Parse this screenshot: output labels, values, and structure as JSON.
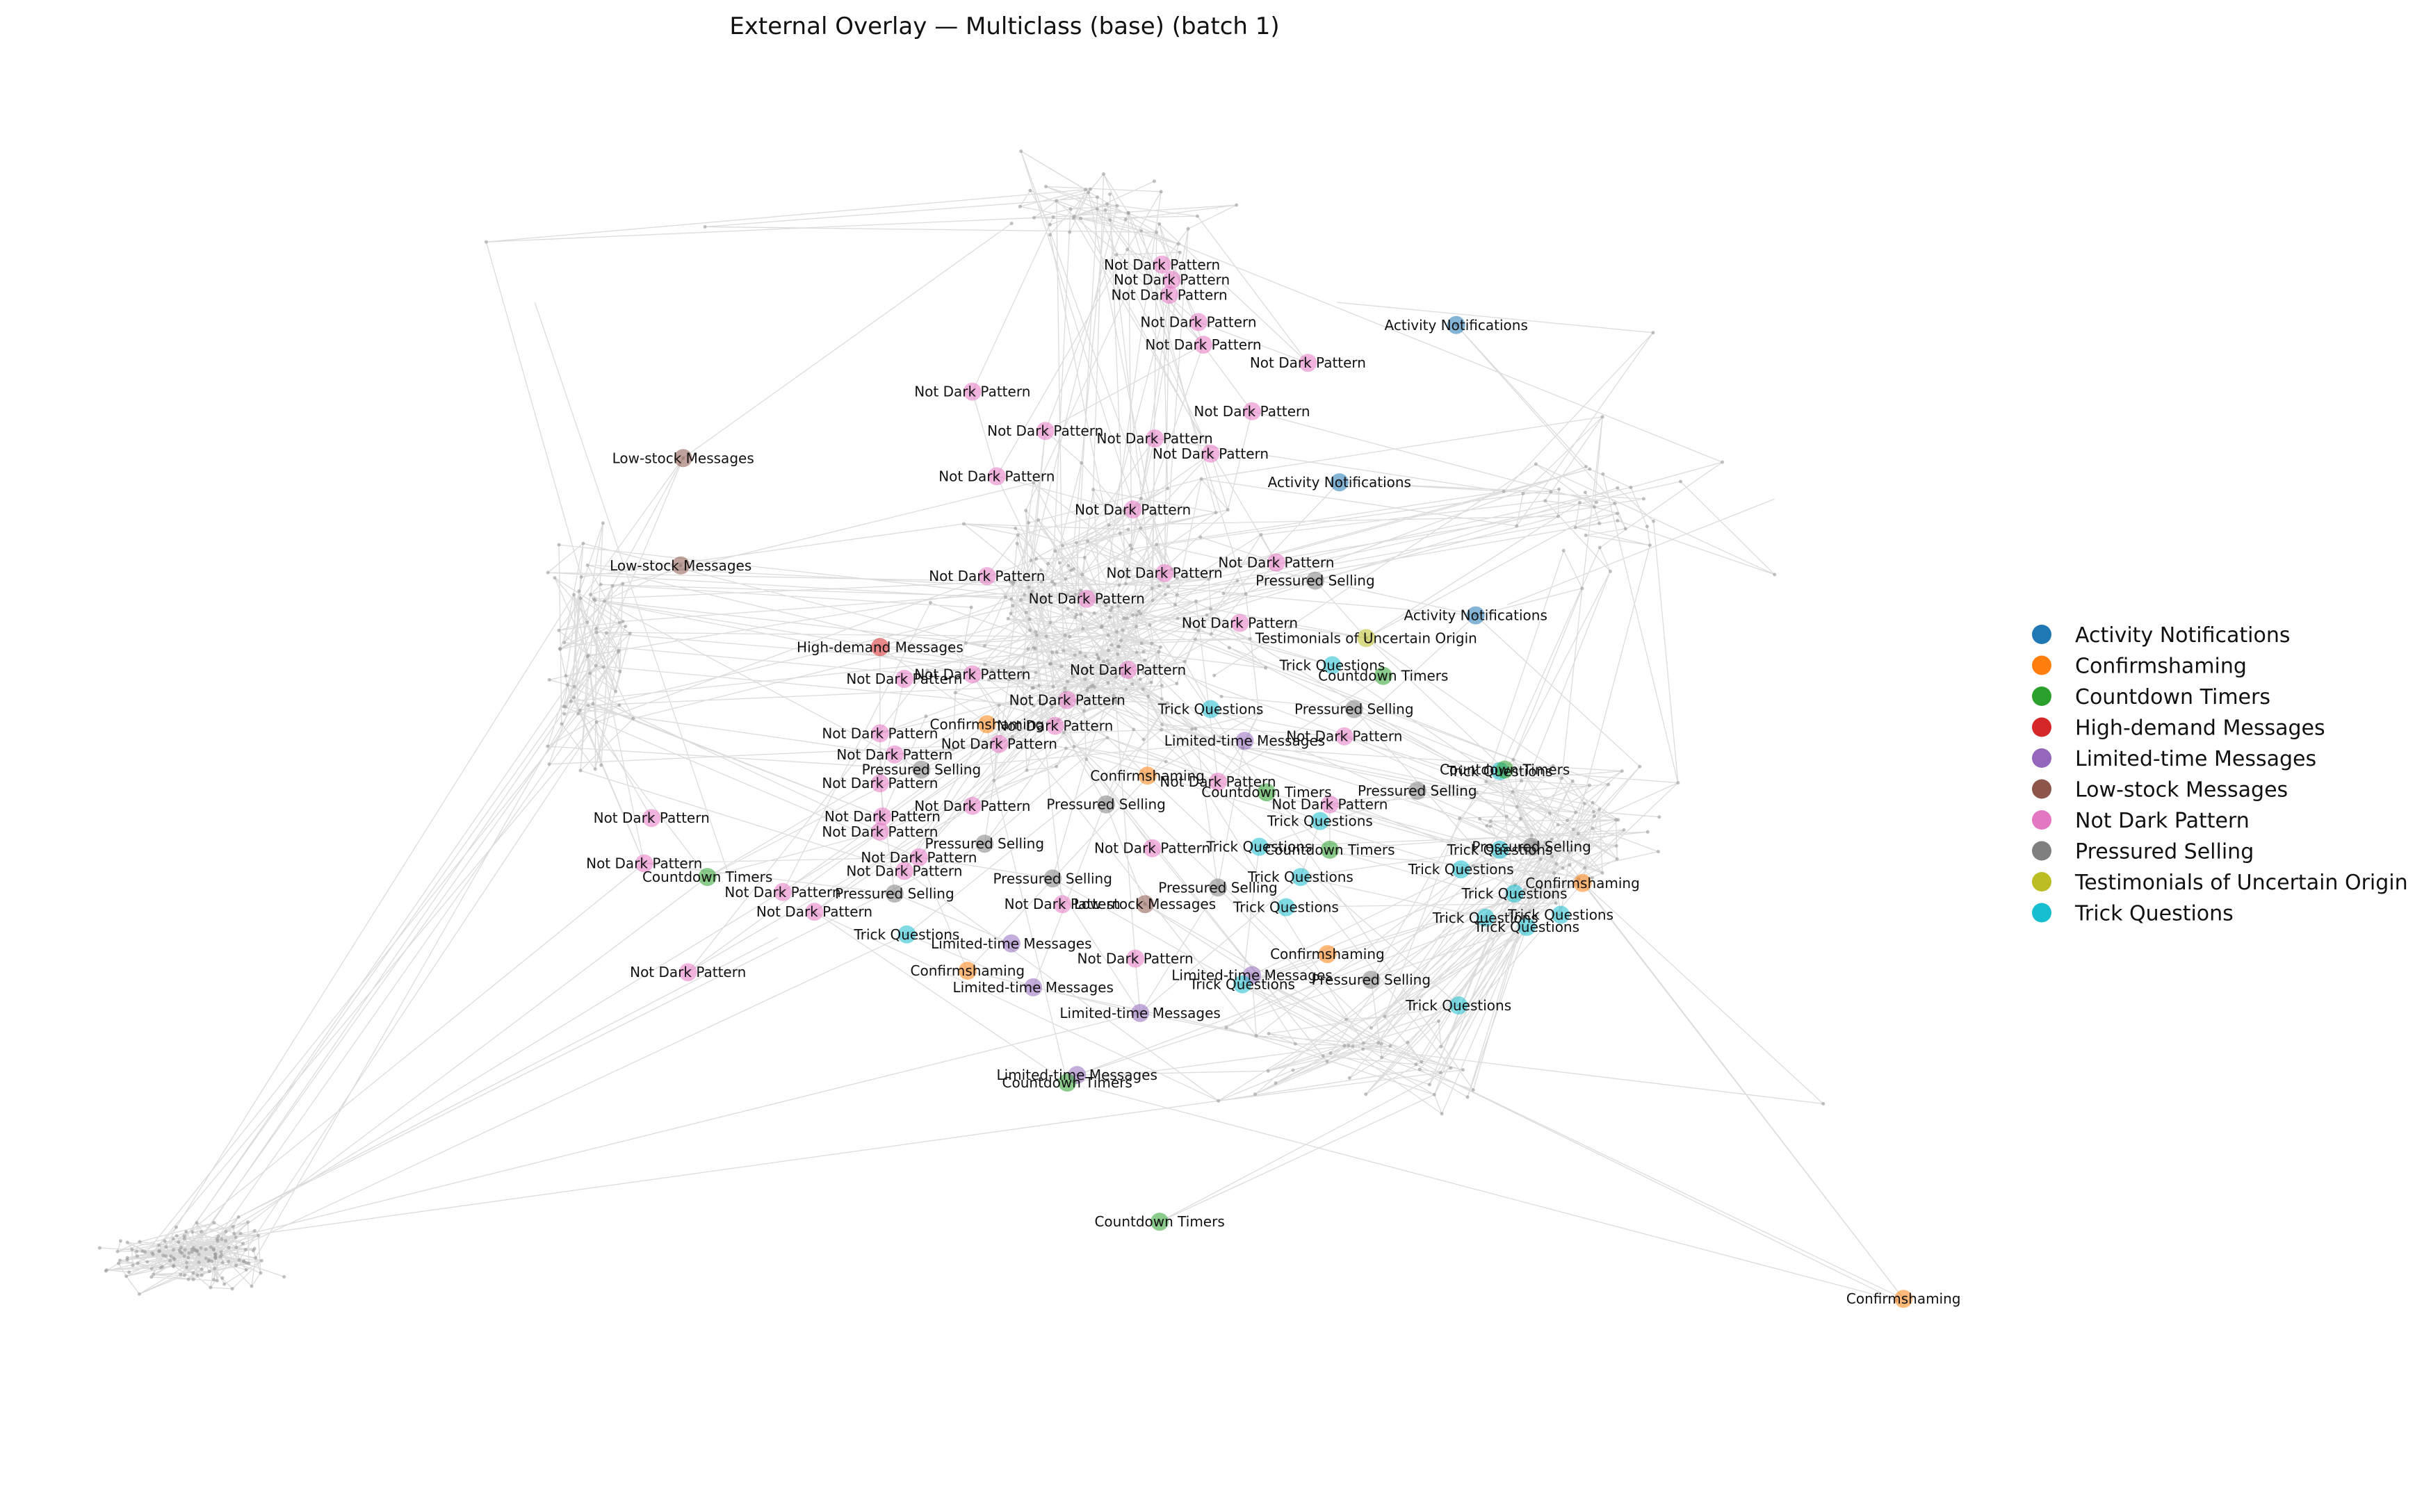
{
  "chart_data": {
    "type": "scatter",
    "title": "External Overlay — Multiclass (base)  (batch 1)",
    "xlabel": "",
    "ylabel": "",
    "grid": false,
    "axes_visible": false,
    "legend_position": "right",
    "edge_color": "#9a9a9a",
    "classes": [
      {
        "name": "Activity Notifications",
        "color": "#1f77b4"
      },
      {
        "name": "Confirmshaming",
        "color": "#ff7f0e"
      },
      {
        "name": "Countdown Timers",
        "color": "#2ca02c"
      },
      {
        "name": "High-demand Messages",
        "color": "#d62728"
      },
      {
        "name": "Limited-time Messages",
        "color": "#9467bd"
      },
      {
        "name": "Low-stock Messages",
        "color": "#8c564b"
      },
      {
        "name": "Not Dark Pattern",
        "color": "#e377c2"
      },
      {
        "name": "Pressured Selling",
        "color": "#7f7f7f"
      },
      {
        "name": "Testimonials of Uncertain Origin",
        "color": "#bcbd22"
      },
      {
        "name": "Trick Questions",
        "color": "#17becf"
      }
    ],
    "labeled_nodes": [
      {
        "label": "Not Dark Pattern",
        "x": 0.478,
        "y": 0.175,
        "class": 6
      },
      {
        "label": "Not Dark Pattern",
        "x": 0.482,
        "y": 0.185,
        "class": 6
      },
      {
        "label": "Not Dark Pattern",
        "x": 0.481,
        "y": 0.195,
        "class": 6
      },
      {
        "label": "Not Dark Pattern",
        "x": 0.493,
        "y": 0.213,
        "class": 6
      },
      {
        "label": "Not Dark Pattern",
        "x": 0.495,
        "y": 0.228,
        "class": 6
      },
      {
        "label": "Activity Notifications",
        "x": 0.599,
        "y": 0.215,
        "class": 0
      },
      {
        "label": "Not Dark Pattern",
        "x": 0.4,
        "y": 0.259,
        "class": 6
      },
      {
        "label": "Not Dark Pattern",
        "x": 0.538,
        "y": 0.24,
        "class": 6
      },
      {
        "label": "Not Dark Pattern",
        "x": 0.515,
        "y": 0.272,
        "class": 6
      },
      {
        "label": "Low-stock Messages",
        "x": 0.281,
        "y": 0.303,
        "class": 5
      },
      {
        "label": "Low-stock Messages",
        "x": 0.28,
        "y": 0.374,
        "class": 5
      },
      {
        "label": "Activity Notifications",
        "x": 0.551,
        "y": 0.319,
        "class": 0
      },
      {
        "label": "Activity Notifications",
        "x": 0.607,
        "y": 0.407,
        "class": 0
      },
      {
        "label": "Not Dark Pattern",
        "x": 0.43,
        "y": 0.285,
        "class": 6
      },
      {
        "label": "Not Dark Pattern",
        "x": 0.475,
        "y": 0.29,
        "class": 6
      },
      {
        "label": "Not Dark Pattern",
        "x": 0.498,
        "y": 0.3,
        "class": 6
      },
      {
        "label": "Not Dark Pattern",
        "x": 0.41,
        "y": 0.315,
        "class": 6
      },
      {
        "label": "Not Dark Pattern",
        "x": 0.466,
        "y": 0.337,
        "class": 6
      },
      {
        "label": "Not Dark Pattern",
        "x": 0.406,
        "y": 0.381,
        "class": 6
      },
      {
        "label": "Not Dark Pattern",
        "x": 0.479,
        "y": 0.379,
        "class": 6
      },
      {
        "label": "Not Dark Pattern",
        "x": 0.525,
        "y": 0.372,
        "class": 6
      },
      {
        "label": "Pressured Selling",
        "x": 0.541,
        "y": 0.384,
        "class": 7
      },
      {
        "label": "Not Dark Pattern",
        "x": 0.447,
        "y": 0.396,
        "class": 6
      },
      {
        "label": "Not Dark Pattern",
        "x": 0.51,
        "y": 0.412,
        "class": 6
      },
      {
        "label": "High-demand Messages",
        "x": 0.362,
        "y": 0.428,
        "class": 3
      },
      {
        "label": "Testimonials of Uncertain Origin",
        "x": 0.562,
        "y": 0.422,
        "class": 8
      },
      {
        "label": "Not Dark Pattern",
        "x": 0.4,
        "y": 0.446,
        "class": 6
      },
      {
        "label": "Not Dark Pattern",
        "x": 0.372,
        "y": 0.449,
        "class": 6
      },
      {
        "label": "Not Dark Pattern",
        "x": 0.464,
        "y": 0.443,
        "class": 6
      },
      {
        "label": "Trick Questions",
        "x": 0.548,
        "y": 0.44,
        "class": 9
      },
      {
        "label": "Countdown Timers",
        "x": 0.569,
        "y": 0.447,
        "class": 2
      },
      {
        "label": "Not Dark Pattern",
        "x": 0.439,
        "y": 0.463,
        "class": 6
      },
      {
        "label": "Trick Questions",
        "x": 0.498,
        "y": 0.469,
        "class": 9
      },
      {
        "label": "Pressured Selling",
        "x": 0.557,
        "y": 0.469,
        "class": 7
      },
      {
        "label": "Confirmshaming",
        "x": 0.406,
        "y": 0.479,
        "class": 1
      },
      {
        "label": "Not Dark Pattern",
        "x": 0.362,
        "y": 0.485,
        "class": 6
      },
      {
        "label": "Not Dark Pattern",
        "x": 0.434,
        "y": 0.48,
        "class": 6
      },
      {
        "label": "Limited-time Messages",
        "x": 0.512,
        "y": 0.49,
        "class": 4
      },
      {
        "label": "Not Dark Pattern",
        "x": 0.553,
        "y": 0.487,
        "class": 6
      },
      {
        "label": "Not Dark Pattern",
        "x": 0.368,
        "y": 0.499,
        "class": 6
      },
      {
        "label": "Not Dark Pattern",
        "x": 0.411,
        "y": 0.492,
        "class": 6
      },
      {
        "label": "Pressured Selling",
        "x": 0.379,
        "y": 0.509,
        "class": 7
      },
      {
        "label": "Confirmshaming",
        "x": 0.472,
        "y": 0.513,
        "class": 1
      },
      {
        "label": "Trick Questions",
        "x": 0.617,
        "y": 0.51,
        "class": 9
      },
      {
        "label": "Countdown Timers",
        "x": 0.619,
        "y": 0.509,
        "class": 2
      },
      {
        "label": "Not Dark Pattern",
        "x": 0.362,
        "y": 0.518,
        "class": 6
      },
      {
        "label": "Not Dark Pattern",
        "x": 0.501,
        "y": 0.517,
        "class": 6
      },
      {
        "label": "Pressured Selling",
        "x": 0.583,
        "y": 0.523,
        "class": 7
      },
      {
        "label": "Countdown Timers",
        "x": 0.521,
        "y": 0.524,
        "class": 2
      },
      {
        "label": "Not Dark Pattern",
        "x": 0.4,
        "y": 0.533,
        "class": 6
      },
      {
        "label": "Not Dark Pattern",
        "x": 0.547,
        "y": 0.532,
        "class": 6
      },
      {
        "label": "Pressured Selling",
        "x": 0.455,
        "y": 0.532,
        "class": 7
      },
      {
        "label": "Trick Questions",
        "x": 0.543,
        "y": 0.543,
        "class": 9
      },
      {
        "label": "Not Dark Pattern",
        "x": 0.363,
        "y": 0.54,
        "class": 6
      },
      {
        "label": "Not Dark Pattern",
        "x": 0.362,
        "y": 0.55,
        "class": 6
      },
      {
        "label": "Pressured Selling",
        "x": 0.405,
        "y": 0.558,
        "class": 7
      },
      {
        "label": "Not Dark Pattern",
        "x": 0.474,
        "y": 0.561,
        "class": 6
      },
      {
        "label": "Trick Questions",
        "x": 0.518,
        "y": 0.56,
        "class": 9
      },
      {
        "label": "Countdown Timers",
        "x": 0.547,
        "y": 0.562,
        "class": 2
      },
      {
        "label": "Trick Questions",
        "x": 0.617,
        "y": 0.562,
        "class": 9
      },
      {
        "label": "Pressured Selling",
        "x": 0.63,
        "y": 0.56,
        "class": 7
      },
      {
        "label": "Not Dark Pattern",
        "x": 0.378,
        "y": 0.567,
        "class": 6
      },
      {
        "label": "Not Dark Pattern",
        "x": 0.268,
        "y": 0.541,
        "class": 6
      },
      {
        "label": "Not Dark Pattern",
        "x": 0.265,
        "y": 0.571,
        "class": 6
      },
      {
        "label": "Countdown Timers",
        "x": 0.291,
        "y": 0.58,
        "class": 2
      },
      {
        "label": "Not Dark Pattern",
        "x": 0.372,
        "y": 0.576,
        "class": 6
      },
      {
        "label": "Pressured Selling",
        "x": 0.433,
        "y": 0.581,
        "class": 7
      },
      {
        "label": "Trick Questions",
        "x": 0.601,
        "y": 0.575,
        "class": 9
      },
      {
        "label": "Trick Questions",
        "x": 0.535,
        "y": 0.58,
        "class": 9
      },
      {
        "label": "Pressured Selling",
        "x": 0.501,
        "y": 0.587,
        "class": 7
      },
      {
        "label": "Confirmshaming",
        "x": 0.651,
        "y": 0.584,
        "class": 1
      },
      {
        "label": "Trick Questions",
        "x": 0.623,
        "y": 0.591,
        "class": 9
      },
      {
        "label": "Not Dark Pattern",
        "x": 0.322,
        "y": 0.59,
        "class": 6
      },
      {
        "label": "Pressured Selling",
        "x": 0.368,
        "y": 0.591,
        "class": 7
      },
      {
        "label": "Not Dark Pattern",
        "x": 0.335,
        "y": 0.603,
        "class": 6
      },
      {
        "label": "Not Dark Pattern",
        "x": 0.437,
        "y": 0.598,
        "class": 6
      },
      {
        "label": "Low-stock Messages",
        "x": 0.471,
        "y": 0.598,
        "class": 5
      },
      {
        "label": "Trick Questions",
        "x": 0.529,
        "y": 0.6,
        "class": 9
      },
      {
        "label": "Trick Questions",
        "x": 0.611,
        "y": 0.607,
        "class": 9
      },
      {
        "label": "Trick Questions",
        "x": 0.642,
        "y": 0.605,
        "class": 9
      },
      {
        "label": "Trick Questions",
        "x": 0.628,
        "y": 0.613,
        "class": 9
      },
      {
        "label": "Trick Questions",
        "x": 0.373,
        "y": 0.618,
        "class": 9
      },
      {
        "label": "Limited-time Messages",
        "x": 0.416,
        "y": 0.624,
        "class": 4
      },
      {
        "label": "Confirmshaming",
        "x": 0.546,
        "y": 0.631,
        "class": 1
      },
      {
        "label": "Not Dark Pattern",
        "x": 0.283,
        "y": 0.643,
        "class": 6
      },
      {
        "label": "Confirmshaming",
        "x": 0.398,
        "y": 0.642,
        "class": 1
      },
      {
        "label": "Not Dark Pattern",
        "x": 0.467,
        "y": 0.634,
        "class": 6
      },
      {
        "label": "Limited-time Messages",
        "x": 0.515,
        "y": 0.645,
        "class": 4
      },
      {
        "label": "Trick Questions",
        "x": 0.511,
        "y": 0.651,
        "class": 9
      },
      {
        "label": "Pressured Selling",
        "x": 0.564,
        "y": 0.648,
        "class": 7
      },
      {
        "label": "Limited-time Messages",
        "x": 0.425,
        "y": 0.653,
        "class": 4
      },
      {
        "label": "Trick Questions",
        "x": 0.6,
        "y": 0.665,
        "class": 9
      },
      {
        "label": "Limited-time Messages",
        "x": 0.469,
        "y": 0.67,
        "class": 4
      },
      {
        "label": "Limited-time Messages",
        "x": 0.443,
        "y": 0.711,
        "class": 4
      },
      {
        "label": "Countdown Timers",
        "x": 0.439,
        "y": 0.716,
        "class": 2
      },
      {
        "label": "Countdown Timers",
        "x": 0.477,
        "y": 0.808,
        "class": 2
      },
      {
        "label": "Confirmshaming",
        "x": 0.783,
        "y": 0.859,
        "class": 1
      }
    ]
  }
}
